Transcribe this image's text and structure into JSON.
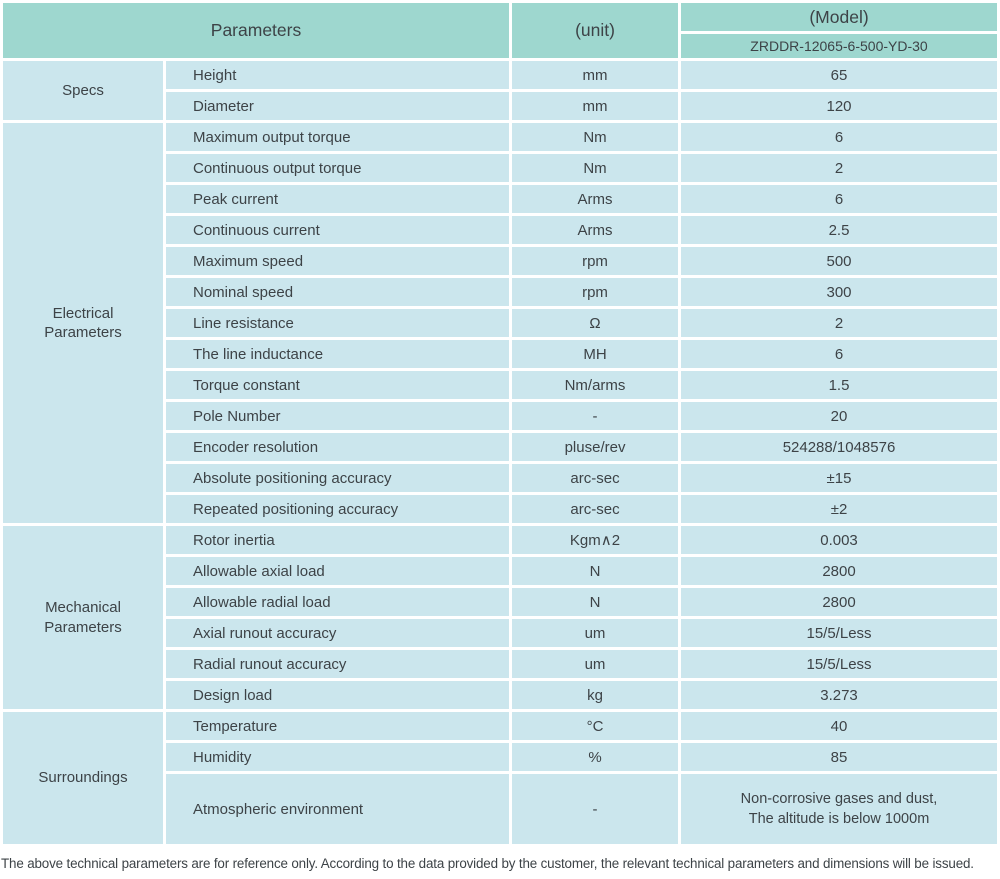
{
  "colors": {
    "header_bg": "#9ed7cf",
    "row_bg": "#cbe6ed",
    "gap": "#ffffff",
    "text": "#3d4347"
  },
  "table": {
    "header": {
      "parameters_label": "Parameters",
      "unit_label": "(unit)",
      "model_label": "(Model)",
      "model_value": "ZRDDR-12065-6-500-YD-30"
    },
    "sections": [
      {
        "name": "Specs",
        "rows": [
          {
            "param": "Height",
            "unit": "mm",
            "value": "65"
          },
          {
            "param": "Diameter",
            "unit": "mm",
            "value": "120"
          }
        ]
      },
      {
        "name": "Electrical Parameters",
        "rows": [
          {
            "param": "Maximum output torque",
            "unit": "Nm",
            "value": "6"
          },
          {
            "param": "Continuous output torque",
            "unit": "Nm",
            "value": "2"
          },
          {
            "param": "Peak current",
            "unit": "Arms",
            "value": "6"
          },
          {
            "param": "Continuous current",
            "unit": "Arms",
            "value": "2.5"
          },
          {
            "param": "Maximum speed",
            "unit": "rpm",
            "value": "500"
          },
          {
            "param": "Nominal speed",
            "unit": "rpm",
            "value": "300"
          },
          {
            "param": "Line resistance",
            "unit": "Ω",
            "value": "2"
          },
          {
            "param": "The line inductance",
            "unit": "MH",
            "value": "6"
          },
          {
            "param": "Torque constant",
            "unit": "Nm/arms",
            "value": "1.5"
          },
          {
            "param": "Pole Number",
            "unit": "-",
            "value": "20"
          },
          {
            "param": "Encoder resolution",
            "unit": "pluse/rev",
            "value": "524288/1048576"
          },
          {
            "param": "Absolute positioning accuracy",
            "unit": "arc-sec",
            "value": "±15"
          },
          {
            "param": "Repeated positioning accuracy",
            "unit": "arc-sec",
            "value": "±2"
          }
        ]
      },
      {
        "name": "Mechanical Parameters",
        "rows": [
          {
            "param": "Rotor inertia",
            "unit": "Kgm∧2",
            "value": "0.003"
          },
          {
            "param": "Allowable axial load",
            "unit": "N",
            "value": "2800"
          },
          {
            "param": "Allowable radial load",
            "unit": "N",
            "value": "2800"
          },
          {
            "param": "Axial runout accuracy",
            "unit": "um",
            "value": "15/5/Less"
          },
          {
            "param": "Radial runout accuracy",
            "unit": "um",
            "value": "15/5/Less"
          },
          {
            "param": "Design load",
            "unit": "kg",
            "value": "3.273"
          }
        ]
      },
      {
        "name": "Surroundings",
        "rows": [
          {
            "param": "Temperature",
            "unit": "°C",
            "value": "40"
          },
          {
            "param": "Humidity",
            "unit": "%",
            "value": "85"
          },
          {
            "param": "Atmospheric environment",
            "unit": "-",
            "value_lines": [
              "Non-corrosive gases and dust,",
              "The altitude is below 1000m"
            ]
          }
        ]
      }
    ]
  },
  "footer": {
    "note": "The above technical parameters are for reference only. According to the data provided by the customer, the relevant technical parameters and dimensions will be issued."
  }
}
